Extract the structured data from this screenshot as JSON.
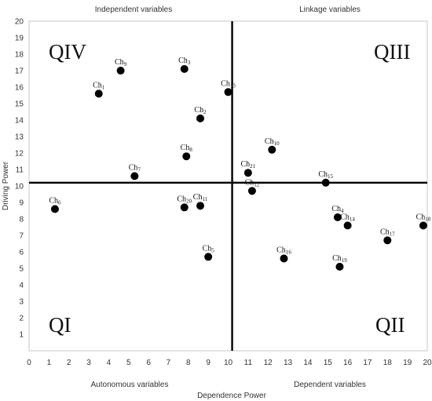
{
  "chart_data": {
    "type": "scatter",
    "title": "",
    "xlabel": "Dependence Power",
    "ylabel": "Driving Power",
    "xlim": [
      0,
      20
    ],
    "ylim": [
      0,
      20
    ],
    "x_ticks": [
      0,
      1,
      2,
      3,
      4,
      5,
      6,
      7,
      8,
      9,
      10,
      11,
      12,
      13,
      14,
      15,
      16,
      17,
      18,
      19,
      20
    ],
    "y_ticks": [
      1,
      2,
      3,
      4,
      5,
      6,
      7,
      8,
      9,
      10,
      11,
      12,
      13,
      14,
      15,
      16,
      17,
      18,
      19,
      20
    ],
    "divider_x": 10.2,
    "divider_y": 10.2,
    "zone_labels": {
      "top_left": "Independent variables",
      "top_right": "Linkage variables",
      "bottom_left": "Autonomous variables",
      "bottom_right": "Dependent variables"
    },
    "quadrants": {
      "top_left": "QIV",
      "top_right": "QIII",
      "bottom_left": "QI",
      "bottom_right": "QII"
    },
    "points": [
      {
        "label": "Ch",
        "sub": "1",
        "x": 3.5,
        "y": 15.6
      },
      {
        "label": "Ch",
        "sub": "2",
        "x": 8.6,
        "y": 14.1
      },
      {
        "label": "Ch",
        "sub": "3",
        "x": 7.8,
        "y": 17.1
      },
      {
        "label": "Ch",
        "sub": "4",
        "x": 15.5,
        "y": 8.1
      },
      {
        "label": "Ch",
        "sub": "5",
        "x": 9.0,
        "y": 5.7
      },
      {
        "label": "Ch",
        "sub": "6",
        "x": 1.3,
        "y": 8.6
      },
      {
        "label": "Ch",
        "sub": "7",
        "x": 5.3,
        "y": 10.6
      },
      {
        "label": "Ch",
        "sub": "8",
        "x": 7.9,
        "y": 11.8
      },
      {
        "label": "Ch",
        "sub": "9",
        "x": 4.6,
        "y": 17.0
      },
      {
        "label": "Ch",
        "sub": "10",
        "x": 12.2,
        "y": 12.2
      },
      {
        "label": "Ch",
        "sub": "11",
        "x": 8.6,
        "y": 8.8
      },
      {
        "label": "Ch",
        "sub": "12",
        "x": 11.2,
        "y": 9.7
      },
      {
        "label": "Ch",
        "sub": "13",
        "x": 10.0,
        "y": 15.7
      },
      {
        "label": "Ch",
        "sub": "14",
        "x": 16.0,
        "y": 7.6
      },
      {
        "label": "Ch",
        "sub": "15",
        "x": 14.9,
        "y": 10.2
      },
      {
        "label": "Ch",
        "sub": "16",
        "x": 12.8,
        "y": 5.6
      },
      {
        "label": "Ch",
        "sub": "17",
        "x": 18.0,
        "y": 6.7
      },
      {
        "label": "Ch",
        "sub": "18",
        "x": 19.8,
        "y": 7.6
      },
      {
        "label": "Ch",
        "sub": "19",
        "x": 15.6,
        "y": 5.1
      },
      {
        "label": "Ch",
        "sub": "20",
        "x": 7.8,
        "y": 8.7
      },
      {
        "label": "Ch",
        "sub": "21",
        "x": 11.0,
        "y": 10.8
      }
    ]
  }
}
